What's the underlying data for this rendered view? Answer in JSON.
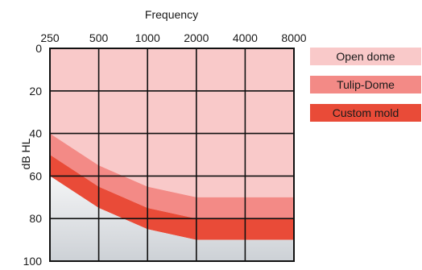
{
  "chart_data": {
    "type": "area",
    "xlabel": "Frequency",
    "ylabel": "dB HL",
    "x_ticks": [
      "250",
      "500",
      "1000",
      "2000",
      "4000",
      "8000"
    ],
    "y_ticks": [
      "0",
      "20",
      "40",
      "60",
      "80",
      "100"
    ],
    "x_scale": "log",
    "y_inverted": true,
    "ylim": [
      0,
      100
    ],
    "grid": true,
    "legend_placement": "right",
    "series": [
      {
        "name": "Open dome",
        "color": "#f9c9c9",
        "x": [
          250,
          500,
          1000,
          2000,
          4000,
          8000
        ],
        "y": [
          40,
          55,
          65,
          70,
          70,
          70
        ]
      },
      {
        "name": "Tulip-Dome",
        "color": "#f38a86",
        "x": [
          250,
          500,
          1000,
          2000,
          4000,
          8000
        ],
        "y": [
          50,
          65,
          75,
          80,
          80,
          80
        ]
      },
      {
        "name": "Custom mold",
        "color": "#e94b38",
        "x": [
          250,
          500,
          1000,
          2000,
          4000,
          8000
        ],
        "y": [
          60,
          75,
          85,
          90,
          90,
          90
        ]
      }
    ],
    "below_color_top": "#f4f5f6",
    "below_color_bottom": "#cdd1d6"
  }
}
